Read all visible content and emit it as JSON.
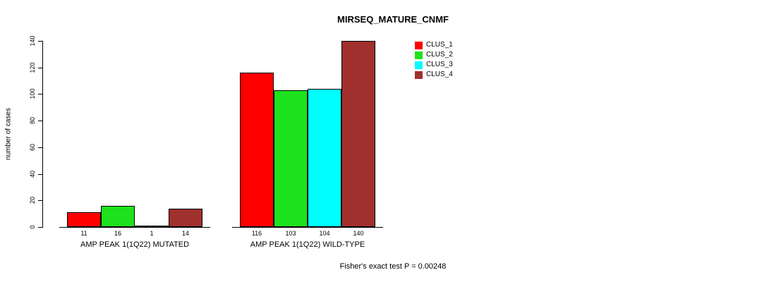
{
  "title": "MIRSEQ_MATURE_CNMF",
  "footer": "Fisher's exact test P = 0.00248",
  "chart_data": {
    "type": "bar",
    "title": "MIRSEQ_MATURE_CNMF",
    "xlabel": "",
    "ylabel": "number of cases",
    "ylim": [
      0,
      140
    ],
    "yticks": [
      0,
      20,
      40,
      60,
      80,
      100,
      120,
      140
    ],
    "grid": false,
    "legend_position": "top-right",
    "categories": [
      "AMP PEAK 1(1Q22) MUTATED",
      "AMP PEAK 1(1Q22) WILD-TYPE"
    ],
    "series": [
      {
        "name": "CLUS_1",
        "color": "#FF0000",
        "values": [
          11,
          116
        ]
      },
      {
        "name": "CLUS_2",
        "color": "#1DE21D",
        "values": [
          16,
          103
        ]
      },
      {
        "name": "CLUS_3",
        "color": "#00FFFF",
        "values": [
          1,
          104
        ]
      },
      {
        "name": "CLUS_4",
        "color": "#A0302E",
        "values": [
          14,
          140
        ]
      }
    ],
    "annotation": "Fisher's exact test P = 0.00248"
  }
}
